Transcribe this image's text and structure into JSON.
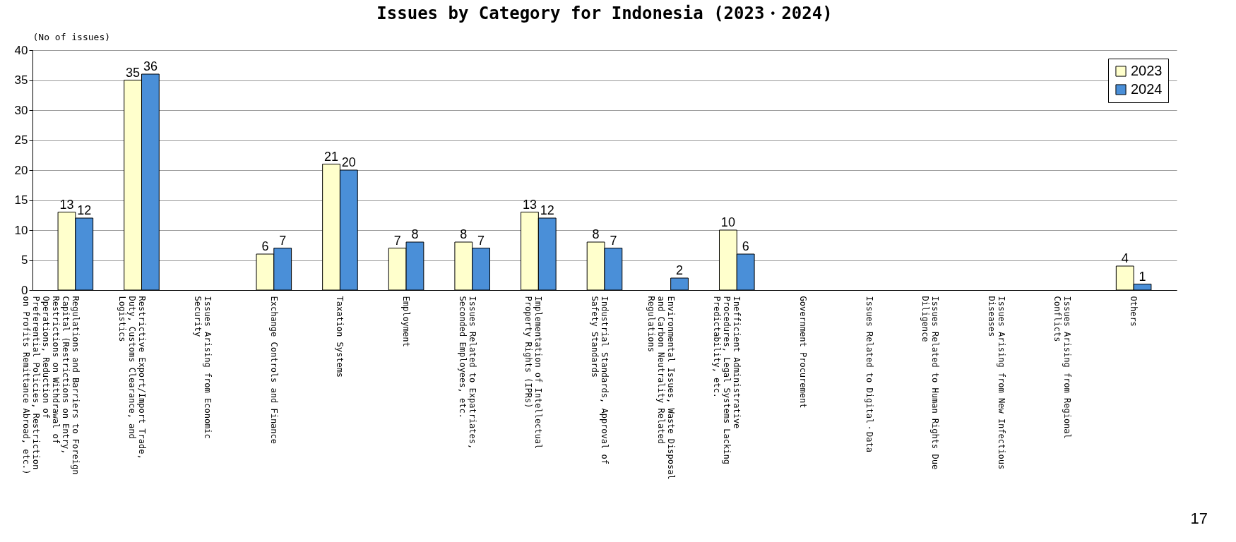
{
  "chart_data": {
    "type": "bar",
    "title": "Issues by Category for Indonesia (2023・2024)",
    "ylabel": "(No of issues)",
    "categories": [
      "Regulations and Barriers to Foreign Capital (Restrictions on Entry, Restrictions on Withdrawal of Operations, Reduction of Preferential Policies, Restriction on Profits Remittance Abroad, etc.)",
      "Restrictive Export/Import Trade, Duty, Customs Clearance, and Logistics",
      "Issues Arising from Economic Security",
      "Exchange Controls and Finance",
      "Taxation Systems",
      "Employment",
      "Issues Related to Expatriates, Seconded Employees, etc.",
      "Implementation of Intellectual Property Rights (IPRs)",
      "Industrial Standards, Approval of Safety Standards",
      "Environmental Issues, Waste Disposal and Carbon Neutrality Related Regulations",
      "Inefficient Administrative Procedures, Legal Systems Lacking Predictability, etc.",
      "Government Procurement",
      "Issues Related to Digital・Data",
      "Issues Related to Human Rights Due Diligence",
      "Issues Arising from New Infectious Diseases",
      "Issues Arising from Regional Conflicts",
      "Others"
    ],
    "series": [
      {
        "name": "2023",
        "color": "#ffffcc",
        "values": [
          13,
          35,
          null,
          6,
          21,
          7,
          8,
          13,
          8,
          null,
          10,
          null,
          null,
          null,
          null,
          null,
          4
        ]
      },
      {
        "name": "2024",
        "color": "#4a8fd8",
        "values": [
          12,
          36,
          null,
          7,
          20,
          8,
          7,
          12,
          7,
          2,
          6,
          null,
          null,
          null,
          null,
          null,
          1
        ]
      }
    ],
    "ylim": [
      0,
      40
    ],
    "yticks": [
      0,
      5,
      10,
      15,
      20,
      25,
      30,
      35,
      40
    ],
    "grid": "y",
    "legend": "top right",
    "data_labels": true,
    "annotations": [
      "17"
    ]
  }
}
